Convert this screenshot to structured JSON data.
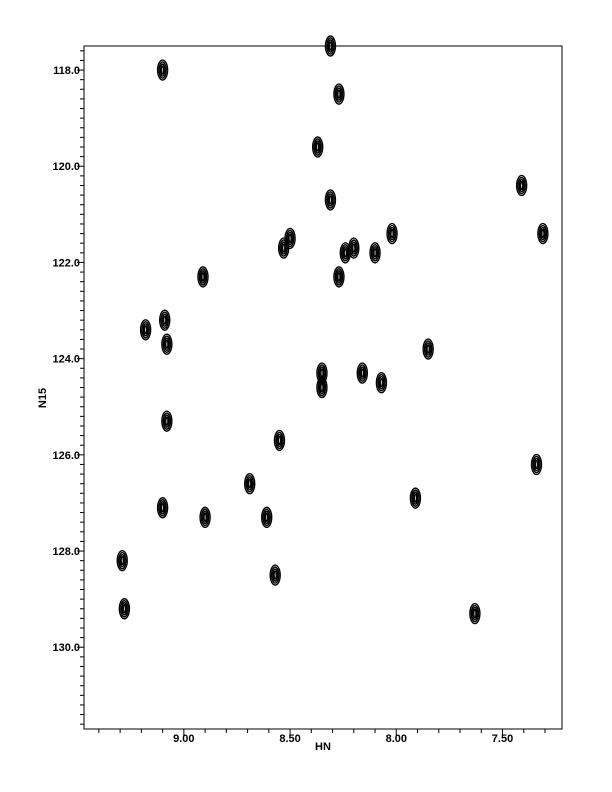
{
  "chart_data": {
    "type": "scatter",
    "title": "",
    "xlabel": "HN",
    "ylabel": "N15",
    "x_reversed": true,
    "y_reversed": true,
    "xlim": [
      9.47,
      7.22
    ],
    "ylim": [
      117.5,
      131.7
    ],
    "x_ticks": [
      9.0,
      8.5,
      8.0,
      7.5
    ],
    "x_tick_labels": [
      "9.00",
      "8.50",
      "8.00",
      "7.50"
    ],
    "y_ticks": [
      118.0,
      120.0,
      122.0,
      124.0,
      126.0,
      128.0,
      130.0
    ],
    "y_tick_labels": [
      "118.0",
      "120.0",
      "122.0",
      "124.0",
      "126.0",
      "128.0",
      "130.0"
    ],
    "grid": false,
    "color": "#000000",
    "points": [
      {
        "x": 8.31,
        "y": 117.5
      },
      {
        "x": 9.1,
        "y": 118.0
      },
      {
        "x": 8.27,
        "y": 118.5
      },
      {
        "x": 8.37,
        "y": 119.6
      },
      {
        "x": 8.31,
        "y": 120.7
      },
      {
        "x": 7.41,
        "y": 120.4
      },
      {
        "x": 7.31,
        "y": 121.4
      },
      {
        "x": 8.5,
        "y": 121.5
      },
      {
        "x": 8.53,
        "y": 121.7
      },
      {
        "x": 8.2,
        "y": 121.7
      },
      {
        "x": 8.24,
        "y": 121.8
      },
      {
        "x": 8.1,
        "y": 121.8
      },
      {
        "x": 8.02,
        "y": 121.4
      },
      {
        "x": 8.27,
        "y": 122.3
      },
      {
        "x": 8.91,
        "y": 122.3
      },
      {
        "x": 9.09,
        "y": 123.2
      },
      {
        "x": 9.18,
        "y": 123.4
      },
      {
        "x": 9.08,
        "y": 123.7
      },
      {
        "x": 7.85,
        "y": 123.8
      },
      {
        "x": 8.35,
        "y": 124.3
      },
      {
        "x": 8.16,
        "y": 124.3
      },
      {
        "x": 8.35,
        "y": 124.6
      },
      {
        "x": 8.07,
        "y": 124.5
      },
      {
        "x": 9.08,
        "y": 125.3
      },
      {
        "x": 8.55,
        "y": 125.7
      },
      {
        "x": 7.34,
        "y": 126.2
      },
      {
        "x": 8.69,
        "y": 126.6
      },
      {
        "x": 7.91,
        "y": 126.9
      },
      {
        "x": 9.1,
        "y": 127.1
      },
      {
        "x": 8.9,
        "y": 127.3
      },
      {
        "x": 8.61,
        "y": 127.3
      },
      {
        "x": 9.29,
        "y": 128.2
      },
      {
        "x": 8.57,
        "y": 128.5
      },
      {
        "x": 9.28,
        "y": 129.2
      },
      {
        "x": 7.63,
        "y": 129.3
      }
    ]
  }
}
